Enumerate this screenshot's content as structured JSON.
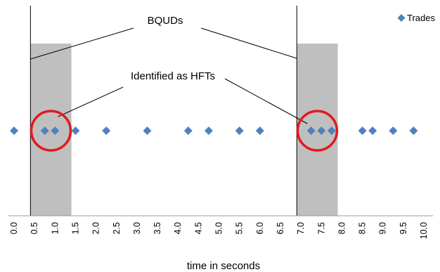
{
  "chart_data": {
    "type": "scatter",
    "xlabel": "time in seconds",
    "ylabel": "",
    "title": "",
    "xlim": [
      0,
      10
    ],
    "ylim": [
      0,
      1
    ],
    "grid": false,
    "legend_position": "top-right",
    "x_ticks": [
      "0.0",
      "0.5",
      "1.0",
      "1.5",
      "2.0",
      "2.5",
      "3.0",
      "3.5",
      "4.0",
      "4.5",
      "5.0",
      "5.5",
      "6.0",
      "6.5",
      "7.0",
      "7.5",
      "8.0",
      "8.5",
      "9.0",
      "9.5",
      "10.0"
    ],
    "series": [
      {
        "name": "Trades",
        "color": "#4f81bd",
        "marker": "diamond",
        "x": [
          0.0,
          0.75,
          1.0,
          1.5,
          2.25,
          3.25,
          4.25,
          4.75,
          5.5,
          6.0,
          7.25,
          7.5,
          7.75,
          8.5,
          8.75,
          9.25,
          9.75
        ],
        "y": [
          0.5,
          0.5,
          0.5,
          0.5,
          0.5,
          0.5,
          0.5,
          0.5,
          0.5,
          0.5,
          0.5,
          0.5,
          0.5,
          0.5,
          0.5,
          0.5,
          0.5
        ]
      }
    ],
    "shaded_regions": [
      {
        "x_start": 0.4,
        "x_end": 1.4,
        "color": "#bfbfbf"
      },
      {
        "x_start": 6.9,
        "x_end": 7.9,
        "color": "#bfbfbf"
      }
    ],
    "vertical_lines": [
      0.4,
      6.9
    ],
    "highlight_circles": [
      {
        "x": 0.9,
        "color": "#e31a1c"
      },
      {
        "x": 7.4,
        "color": "#e31a1c"
      }
    ],
    "annotations": {
      "bquds": "BQUDs",
      "hft": "Identified as HFTs"
    }
  }
}
